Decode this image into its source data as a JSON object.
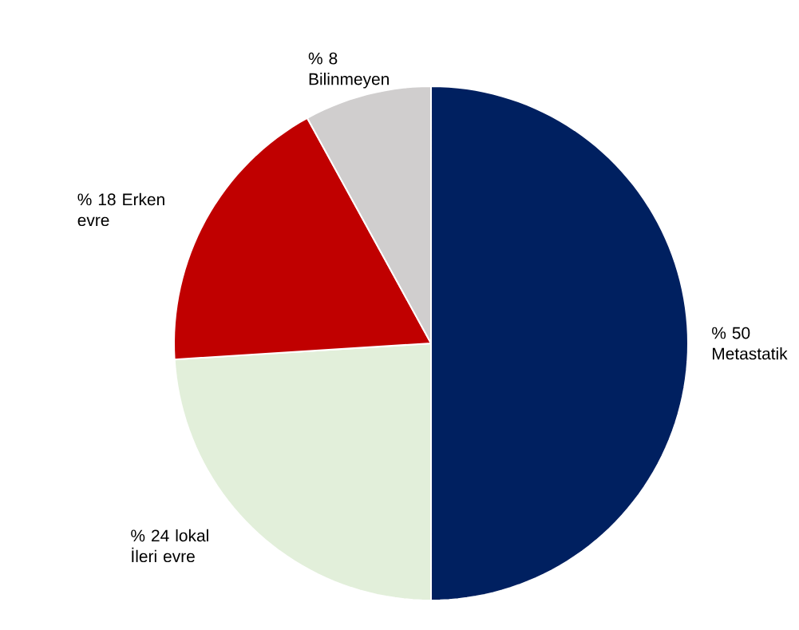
{
  "chart_data": {
    "type": "pie",
    "categories": [
      "Metastatik",
      "lokal İleri evre",
      "Erken evre",
      "Bilinmeyen"
    ],
    "values": [
      50,
      24,
      18,
      8
    ],
    "value_labels": [
      "% 50",
      "% 24",
      "% 18",
      "% 8"
    ],
    "colors": [
      "#002060",
      "#e2efda",
      "#c00000",
      "#d0cece"
    ]
  }
}
